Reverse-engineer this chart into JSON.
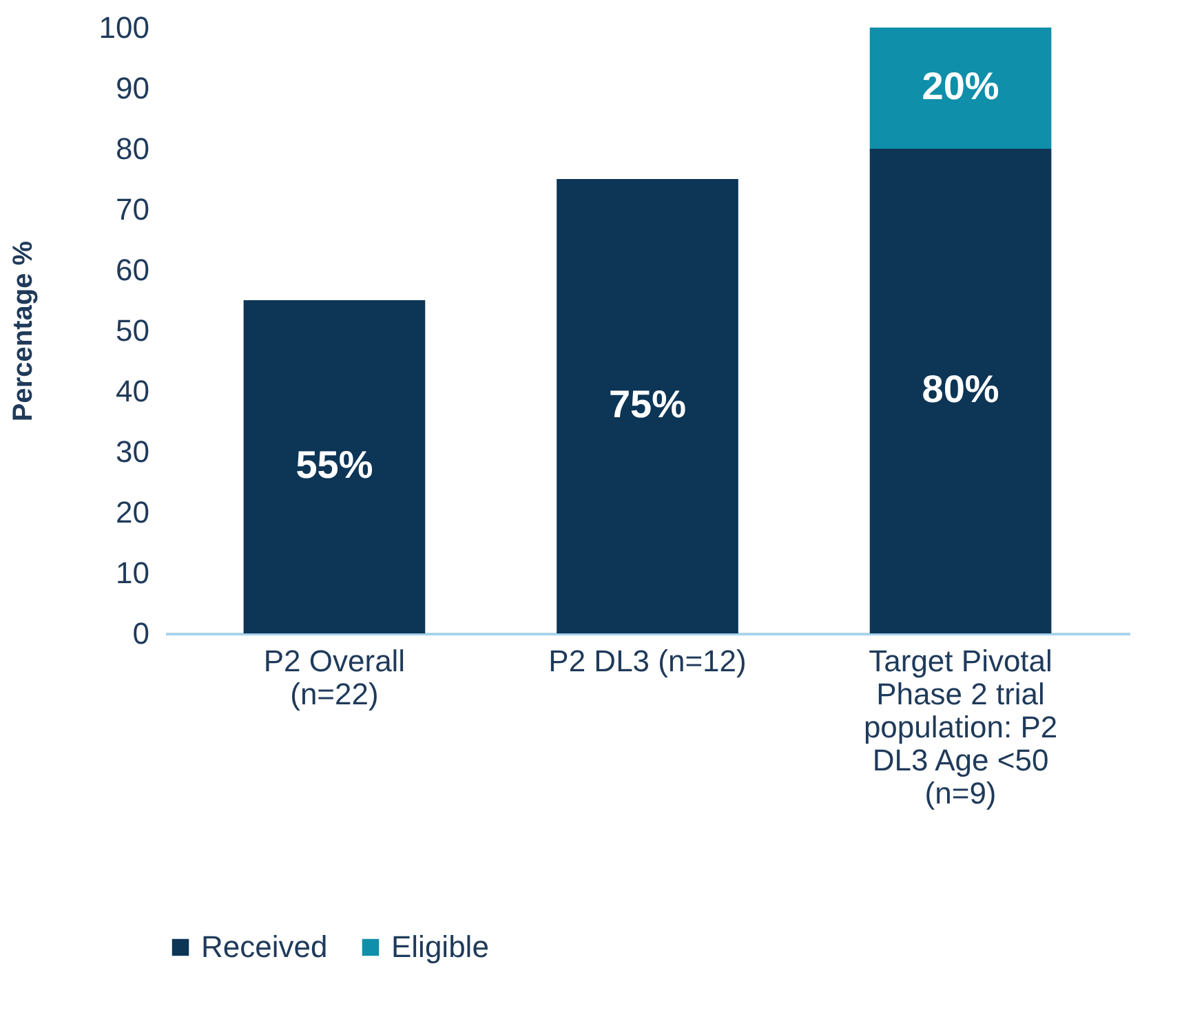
{
  "chart_data": {
    "type": "bar",
    "stacked": true,
    "ylabel": "Percentage %",
    "categories": [
      "P2 Overall (n=22)",
      "P2 DL3 (n=12)",
      "Target Pivotal Phase 2 trial population: P2 DL3 Age <50 (n=9)"
    ],
    "series": [
      {
        "name": "Received",
        "color": "#0c3556",
        "values": [
          55,
          75,
          80
        ],
        "value_labels": [
          "55%",
          "75%",
          "80%"
        ]
      },
      {
        "name": "Eligible",
        "color": "#0f8fa9",
        "values": [
          null,
          null,
          20
        ],
        "value_labels": [
          null,
          null,
          "20%"
        ]
      }
    ],
    "ylim": [
      0,
      100
    ],
    "yticks": [
      0,
      10,
      20,
      30,
      40,
      50,
      60,
      70,
      80,
      90,
      100
    ],
    "grid": false,
    "legend": "bottom"
  }
}
